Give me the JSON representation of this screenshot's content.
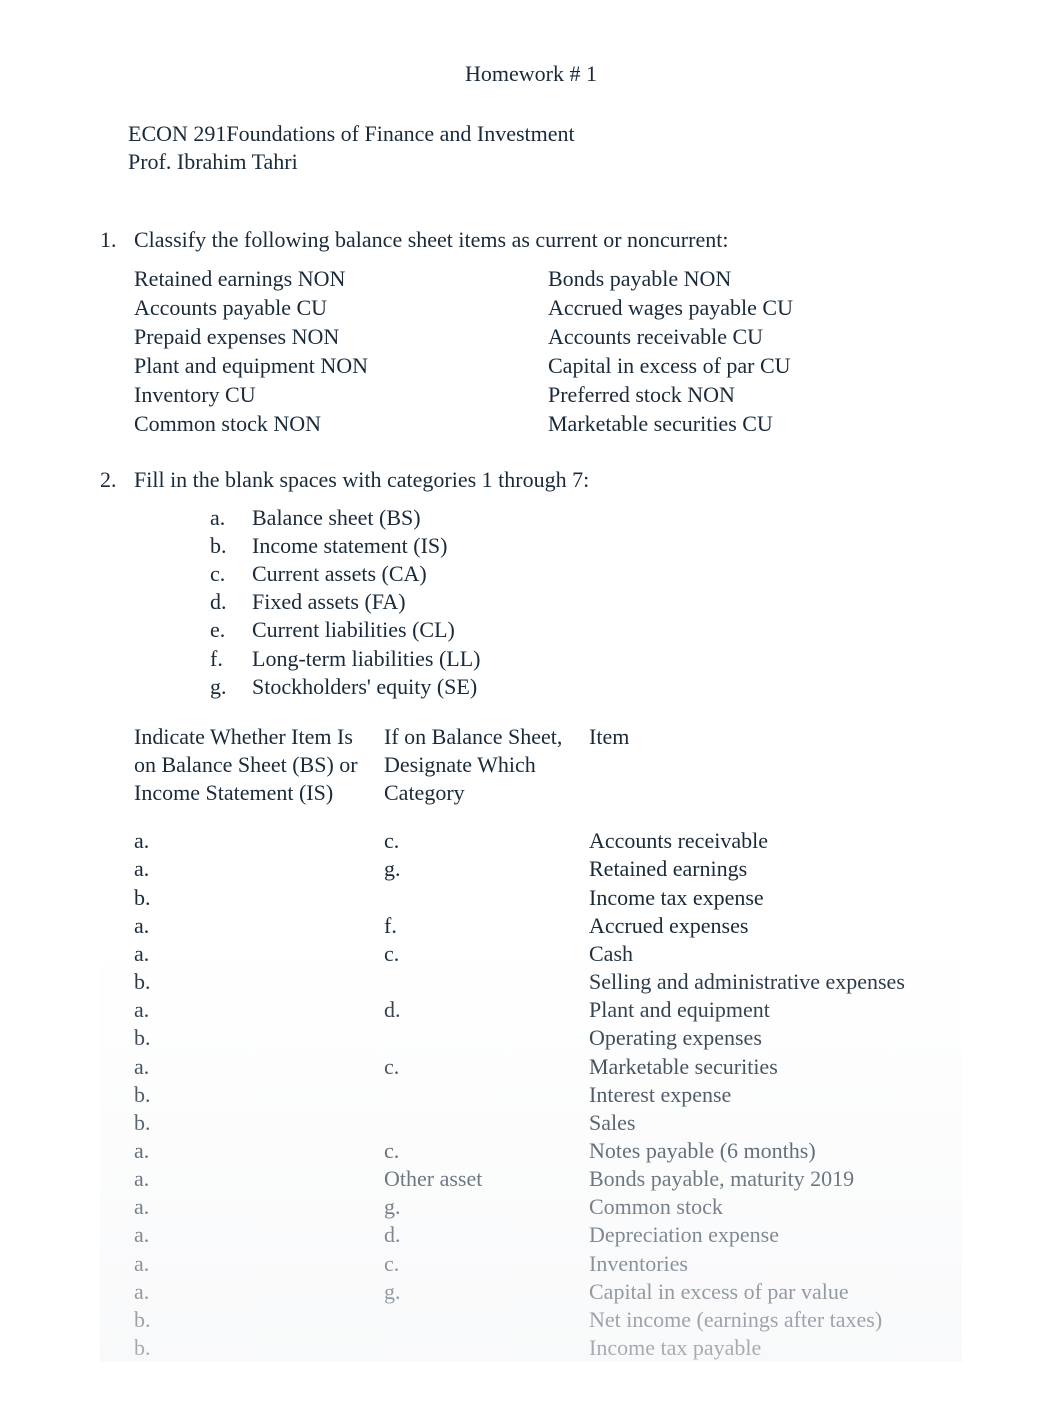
{
  "colors": {
    "text": "#1a2a3a",
    "background": "#ffffff",
    "fade_end": "#f5f6f8"
  },
  "typography": {
    "family": "Times New Roman",
    "body_size_pt": 16,
    "line_height": 1.28
  },
  "header": {
    "title": "Homework # 1",
    "course_line": "ECON 291Foundations of Finance and Investment",
    "prof_line": "Prof. Ibrahim Tahri"
  },
  "q1": {
    "number": "1.",
    "prompt": "Classify the following balance sheet items as current or noncurrent:",
    "left_col": [
      "Retained earnings NON",
      "Accounts payable CU",
      "Prepaid expenses NON",
      "Plant and equipment NON",
      "Inventory CU",
      "Common stock NON"
    ],
    "right_col": [
      "Bonds payable  NON",
      "Accrued wages payable CU",
      "Accounts receivable CU",
      "Capital in excess of par CU",
      "Preferred stock  NON",
      "Marketable securities CU"
    ]
  },
  "q2": {
    "number": "2.",
    "prompt": "Fill in the blank spaces with categories 1 through 7:",
    "categories": [
      {
        "letter": "a.",
        "text": "Balance sheet (BS)"
      },
      {
        "letter": "b.",
        "text": "Income statement (IS)"
      },
      {
        "letter": "c.",
        "text": "Current assets (CA)"
      },
      {
        "letter": "d.",
        "text": "Fixed assets (FA)"
      },
      {
        "letter": "e.",
        "text": "Current liabilities (CL)"
      },
      {
        "letter": "f.",
        "text": "Long-term liabilities (LL)"
      },
      {
        "letter": "g.",
        "text": "Stockholders' equity (SE)"
      }
    ],
    "table": {
      "headers": {
        "c1_l1": "Indicate Whether Item Is",
        "c1_l2": "on Balance Sheet (BS) or",
        "c1_l3": " Income Statement (IS)",
        "c2_l1": "If on Balance Sheet,",
        "c2_l2": "Designate Which",
        "c2_l3": "Category",
        "c3_l1": "Item"
      },
      "rows": [
        {
          "c1": "a.",
          "c2": "c.",
          "c3": "Accounts receivable"
        },
        {
          "c1": "a.",
          "c2": "g.",
          "c3": "Retained earnings"
        },
        {
          "c1": "b.",
          "c2": "",
          "c3": "Income tax expense"
        },
        {
          "c1": "a.",
          "c2": "f.",
          "c3": "Accrued expenses"
        },
        {
          "c1": "a.",
          "c2": "c.",
          "c3": "Cash"
        },
        {
          "c1": "b.",
          "c2": "",
          "c3": "Selling and administrative expenses"
        },
        {
          "c1": "a.",
          "c2": "d.",
          "c3": "Plant and equipment"
        },
        {
          "c1": "b.",
          "c2": "",
          "c3": "Operating expenses"
        },
        {
          "c1": "a.",
          "c2": "c.",
          "c3": "Marketable securities"
        },
        {
          "c1": "b.",
          "c2": "",
          "c3": "Interest expense"
        },
        {
          "c1": "b.",
          "c2": "",
          "c3": "Sales"
        },
        {
          "c1": "a.",
          "c2": "c.",
          "c3": "Notes payable (6 months)"
        },
        {
          "c1": "a.",
          "c2": "Other asset",
          "c3": "Bonds payable, maturity 2019"
        },
        {
          "c1": "a.",
          "c2": "g.",
          "c3": "Common stock"
        },
        {
          "c1": "a.",
          "c2": "d.",
          "c3": "Depreciation expense"
        },
        {
          "c1": "a.",
          "c2": "c.",
          "c3": "Inventories"
        },
        {
          "c1": "a.",
          "c2": "g.",
          "c3": "Capital in excess of par value"
        },
        {
          "c1": "b.",
          "c2": "",
          "c3": "Net income (earnings after taxes)"
        },
        {
          "c1": "b.",
          "c2": "",
          "c3": "Income tax payable"
        }
      ]
    }
  }
}
